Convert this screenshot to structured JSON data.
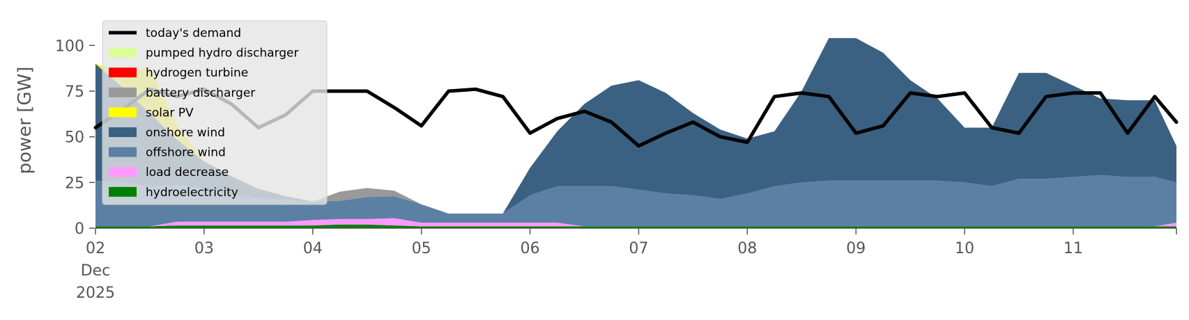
{
  "chart_data": {
    "type": "area",
    "title": "",
    "ylabel": "power [GW]",
    "xlabel": "",
    "ylim": [
      0,
      118
    ],
    "xlim": [
      0,
      9.95
    ],
    "x_unit": "days since 02 Dec 2025 00:00",
    "yticks": [
      0,
      25,
      50,
      75,
      100
    ],
    "ytick_labels": [
      "0",
      "25",
      "50",
      "75",
      "100"
    ],
    "xtick_labels": [
      "02\nDec\n2025",
      "03",
      "04",
      "05",
      "06",
      "07",
      "08",
      "09",
      "10",
      "11"
    ],
    "grid": false,
    "legend_position": "upper-left",
    "stack_order": [
      "hydroelectricity",
      "load decrease",
      "offshore wind",
      "onshore wind",
      "solar PV",
      "battery discharger",
      "hydrogen turbine",
      "pumped hydro discharger"
    ],
    "x": [
      0,
      0.25,
      0.5,
      0.75,
      1,
      1.25,
      1.5,
      1.75,
      2,
      2.25,
      2.5,
      2.75,
      3,
      3.25,
      3.5,
      3.75,
      4,
      4.25,
      4.5,
      4.75,
      5,
      5.25,
      5.5,
      5.75,
      6,
      6.25,
      6.5,
      6.75,
      7,
      7.25,
      7.5,
      7.75,
      8,
      8.25,
      8.5,
      8.75,
      9,
      9.25,
      9.5,
      9.75,
      9.95
    ],
    "series": [
      {
        "name": "hydroelectricity",
        "color": "#008000",
        "values": [
          1,
          1,
          1,
          1.5,
          1.5,
          1.5,
          1.5,
          1.5,
          1.5,
          2,
          2,
          1.5,
          1,
          1,
          1,
          1,
          1,
          1,
          1,
          1,
          1,
          1,
          1,
          1,
          1,
          1,
          1,
          1,
          1,
          1,
          1,
          1,
          1,
          1,
          1,
          1,
          1,
          1,
          1,
          1,
          1
        ]
      },
      {
        "name": "load decrease",
        "color": "#ff99ff",
        "values": [
          0,
          0,
          0,
          2,
          2,
          2,
          2,
          2,
          3,
          3,
          3,
          4,
          2,
          2,
          2,
          2,
          2,
          2,
          0,
          0,
          0,
          0,
          0,
          0,
          0,
          0,
          0,
          0,
          0,
          0,
          0,
          0,
          0,
          0,
          0,
          0,
          0,
          0,
          0,
          0,
          2
        ]
      },
      {
        "name": "offshore wind",
        "color": "#5b80a3",
        "values": [
          25,
          24,
          22,
          20,
          18,
          15,
          13,
          12,
          10,
          10,
          12,
          12,
          10,
          5,
          5,
          5,
          15,
          20,
          22,
          22,
          20,
          18,
          17,
          15,
          18,
          22,
          24,
          25,
          25,
          25,
          25,
          25,
          24,
          22,
          26,
          26,
          27,
          28,
          27,
          27,
          22
        ]
      },
      {
        "name": "onshore wind",
        "color": "#3b6182",
        "values": [
          64,
          52,
          40,
          25,
          15,
          10,
          5,
          2,
          0,
          0,
          0,
          0,
          0,
          0,
          0,
          0,
          15,
          30,
          45,
          55,
          60,
          55,
          45,
          38,
          30,
          30,
          50,
          78,
          78,
          70,
          55,
          45,
          30,
          32,
          58,
          58,
          50,
          42,
          42,
          42,
          20
        ]
      },
      {
        "name": "solar PV",
        "color": "#ffff00",
        "values": [
          0,
          8,
          25,
          8,
          0,
          0,
          0,
          0,
          0,
          0,
          0,
          0,
          0,
          0,
          0,
          0,
          0,
          0,
          0,
          0,
          0,
          0,
          0,
          0,
          0,
          0,
          0,
          0,
          0,
          0,
          0,
          0,
          0,
          0,
          0,
          0,
          0,
          0,
          0,
          0,
          0
        ]
      },
      {
        "name": "battery discharger",
        "color": "#999999",
        "values": [
          0,
          0,
          0,
          0,
          0,
          0,
          0,
          0,
          0,
          5,
          5,
          3,
          0,
          0,
          0,
          0,
          0,
          0,
          0,
          0,
          0,
          0,
          0,
          0,
          0,
          0,
          0,
          0,
          0,
          0,
          0,
          0,
          0,
          0,
          0,
          0,
          0,
          0,
          0,
          0,
          0
        ]
      },
      {
        "name": "hydrogen turbine",
        "color": "#ff0000",
        "values": [
          0,
          0,
          0,
          0,
          0,
          0,
          0,
          0,
          0,
          0,
          0,
          0,
          0,
          0,
          0,
          0,
          0,
          0,
          0,
          0,
          0,
          0,
          0,
          0,
          0,
          0,
          0,
          0,
          0,
          0,
          0,
          0,
          0,
          0,
          0,
          0,
          0,
          0,
          0,
          0,
          0
        ]
      },
      {
        "name": "pumped hydro discharger",
        "color": "#d9ff99",
        "values": [
          0,
          0,
          0,
          0,
          0,
          0,
          0,
          0,
          0,
          0,
          0,
          0,
          0,
          0,
          0,
          0,
          0,
          0,
          0,
          0,
          0,
          0,
          0,
          0,
          0,
          0,
          0,
          0,
          0,
          0,
          0,
          0,
          0,
          0,
          0,
          0,
          0,
          0,
          0,
          0,
          0
        ]
      }
    ],
    "demand": {
      "name": "today's demand",
      "color": "#000000",
      "values": [
        55,
        65,
        76,
        72,
        76,
        68,
        55,
        62,
        75,
        75,
        75,
        66,
        56,
        75,
        76,
        72,
        52,
        60,
        64,
        58,
        45,
        52,
        58,
        50,
        47,
        72,
        74,
        72,
        52,
        56,
        74,
        72,
        74,
        55,
        52,
        72,
        74,
        74,
        52,
        72,
        58
      ]
    }
  },
  "legend": [
    {
      "label": "today's demand",
      "kind": "line",
      "color": "#000000"
    },
    {
      "label": "pumped hydro discharger",
      "kind": "patch",
      "color": "#d9ff99"
    },
    {
      "label": "hydrogen turbine",
      "kind": "patch",
      "color": "#ff0000"
    },
    {
      "label": "battery discharger",
      "kind": "patch",
      "color": "#999999"
    },
    {
      "label": "solar PV",
      "kind": "patch",
      "color": "#ffff00"
    },
    {
      "label": "onshore wind",
      "kind": "patch",
      "color": "#3b6182"
    },
    {
      "label": "offshore wind",
      "kind": "patch",
      "color": "#5b80a3"
    },
    {
      "label": "load decrease",
      "kind": "patch",
      "color": "#ff99ff"
    },
    {
      "label": "hydroelectricity",
      "kind": "patch",
      "color": "#008000"
    }
  ]
}
